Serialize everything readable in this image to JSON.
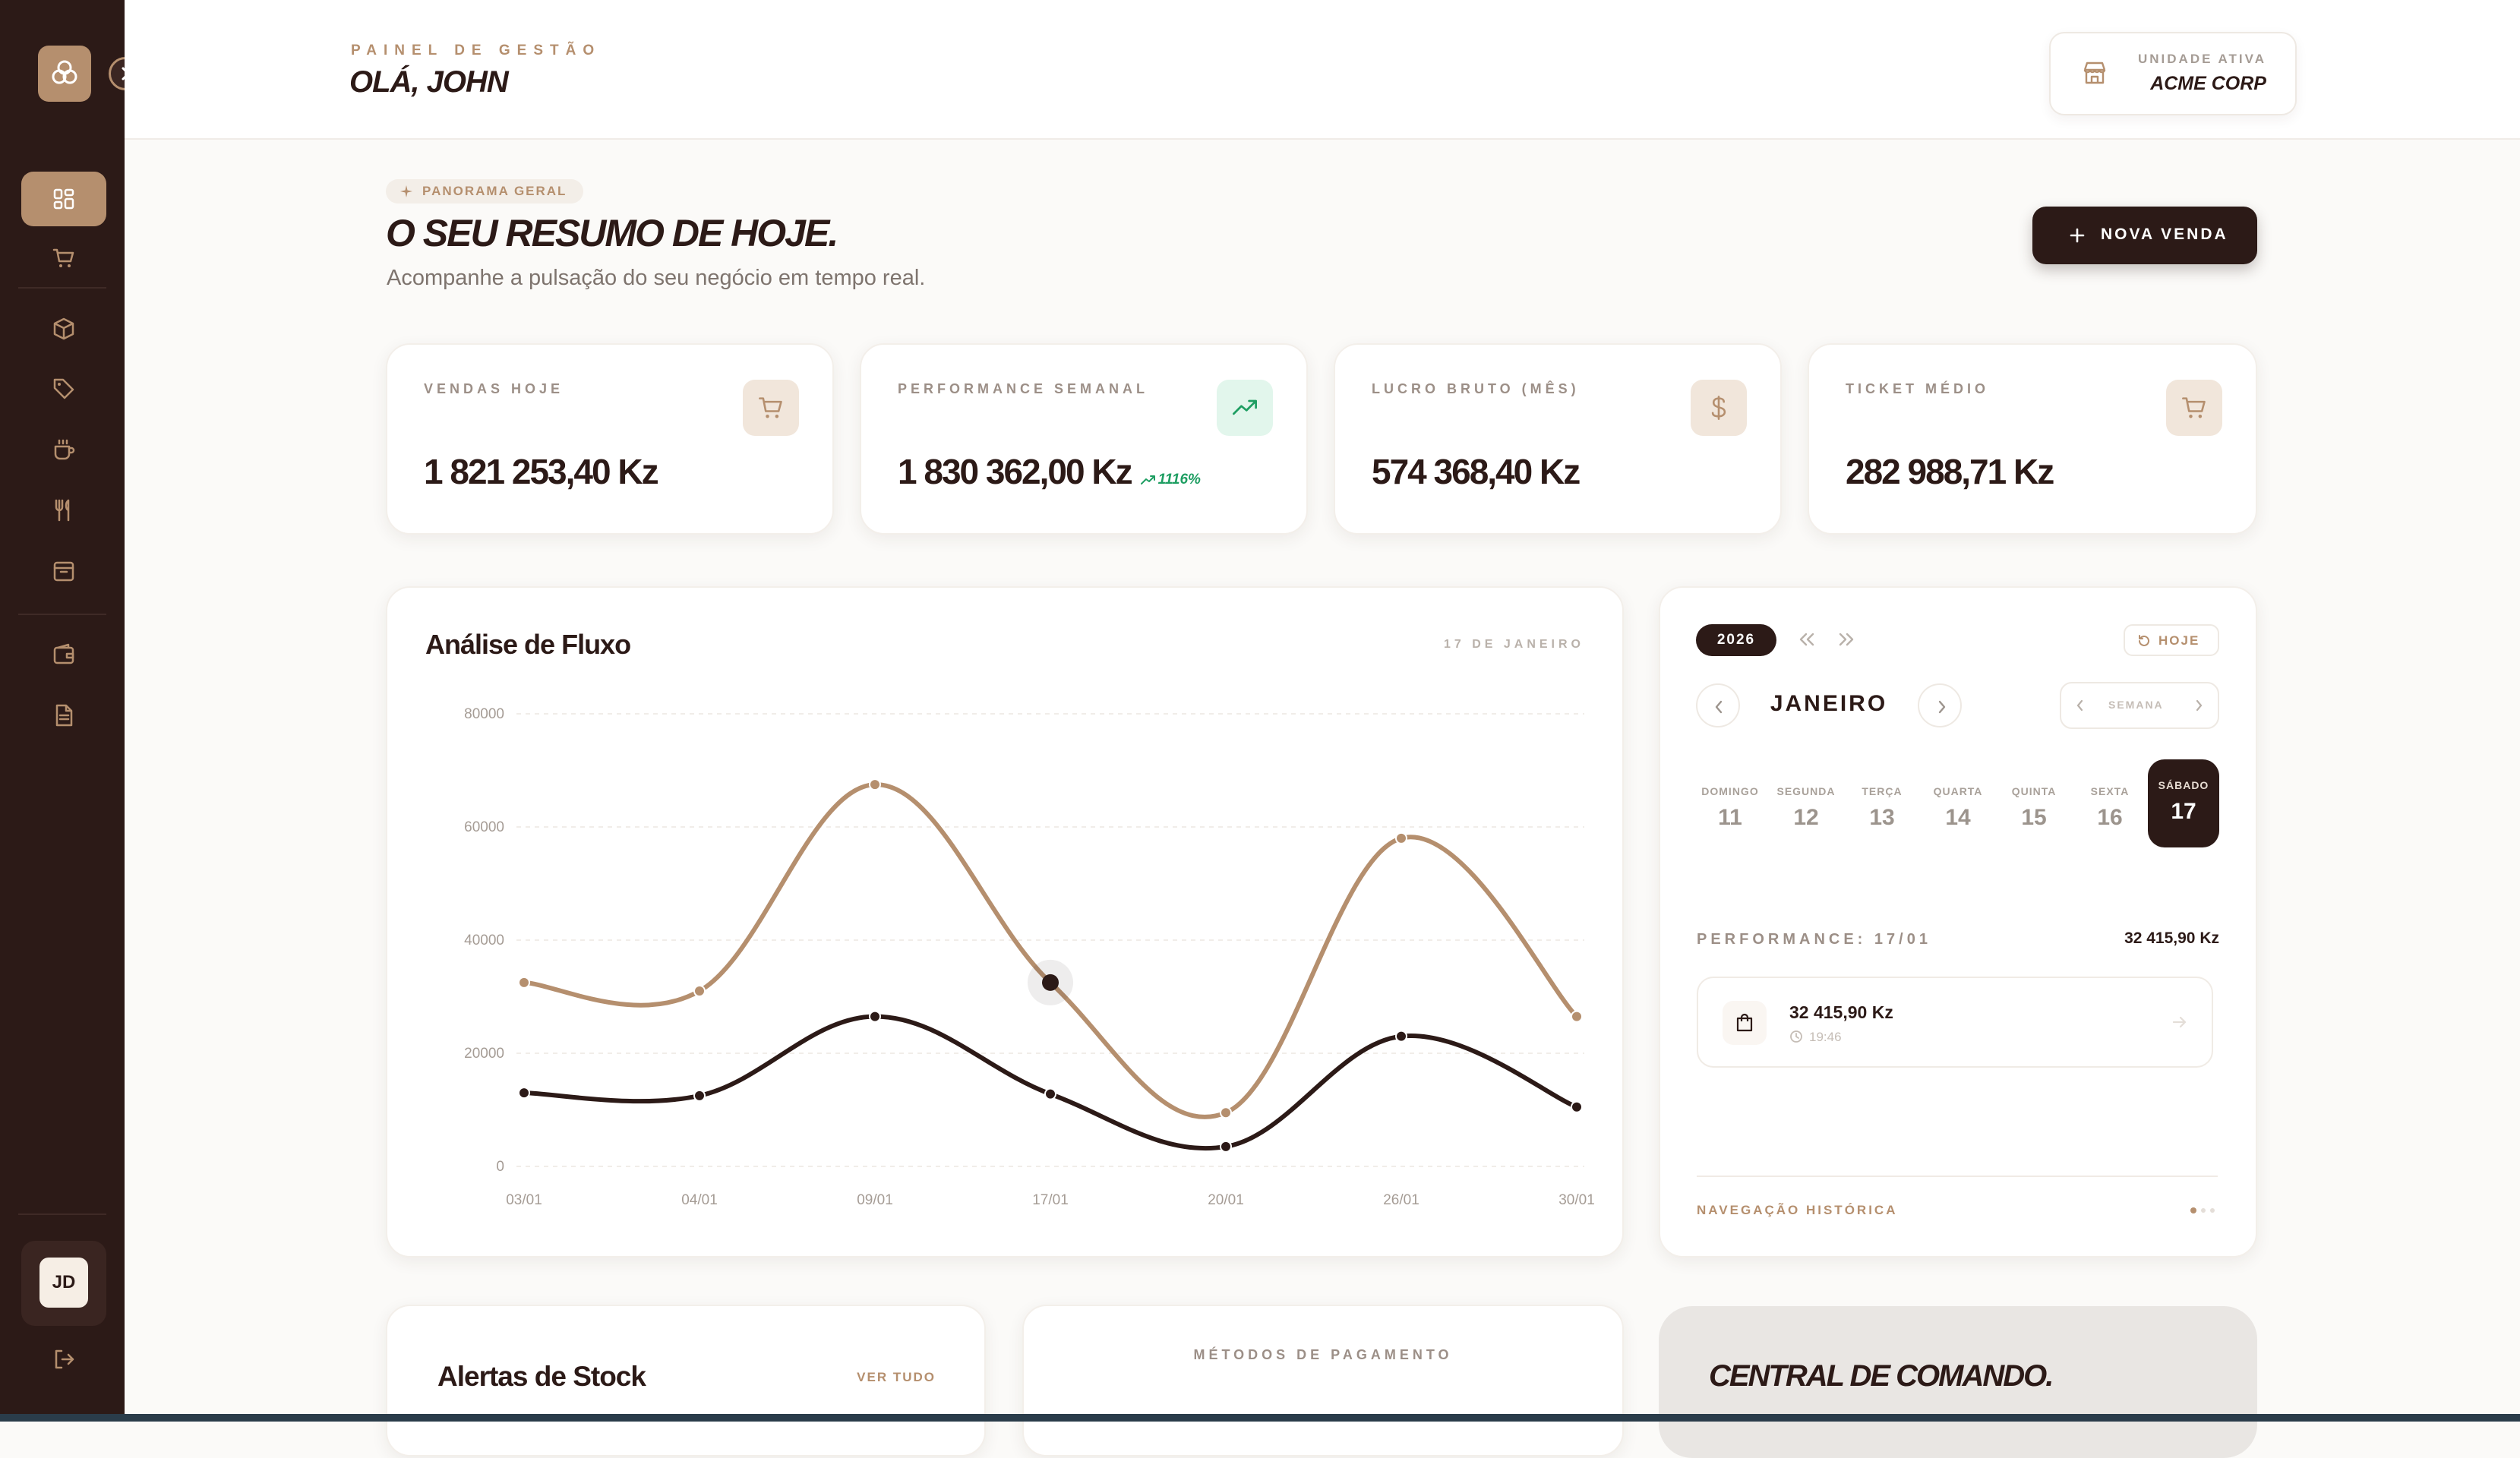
{
  "header": {
    "eyebrow": "PAINEL DE GESTÃO",
    "greeting": "OLÁ, JOHN",
    "unit_label": "UNIDADE ATIVA",
    "unit_name": "ACME CORP"
  },
  "sidebar": {
    "avatar_initials": "JD",
    "items": [
      {
        "icon": "dashboard-icon"
      },
      {
        "icon": "cart-icon"
      },
      {
        "icon": "box-icon"
      },
      {
        "icon": "tag-icon"
      },
      {
        "icon": "coffee-cup-icon"
      },
      {
        "icon": "utensils-icon"
      },
      {
        "icon": "archive-icon"
      },
      {
        "icon": "wallet-icon"
      },
      {
        "icon": "document-icon"
      }
    ]
  },
  "overview": {
    "badge": "PANORAMA GERAL",
    "title": "O SEU RESUMO DE HOJE.",
    "subtitle": "Acompanhe a pulsação do seu negócio em tempo real.",
    "new_sale_label": "NOVA VENDA"
  },
  "kpis": [
    {
      "label": "VENDAS HOJE",
      "value": "1 821 253,40 Kz",
      "icon": "cart-icon"
    },
    {
      "label": "PERFORMANCE SEMANAL",
      "value": "1 830 362,00 Kz",
      "trend": "1116%",
      "icon": "trending-up-icon"
    },
    {
      "label": "LUCRO BRUTO (MÊS)",
      "value": "574 368,40 Kz",
      "icon": "dollar-icon"
    },
    {
      "label": "TICKET MÉDIO",
      "value": "282 988,71 Kz",
      "icon": "cart-icon"
    }
  ],
  "flow": {
    "title": "Análise de Fluxo",
    "date": "17 DE JANEIRO"
  },
  "chart_data": {
    "type": "line",
    "title": "Análise de Fluxo",
    "xlabel": "",
    "ylabel": "",
    "categories": [
      "03/01",
      "04/01",
      "09/01",
      "17/01",
      "20/01",
      "26/01",
      "30/01"
    ],
    "ylim": [
      0,
      80000
    ],
    "yticks": [
      0,
      20000,
      40000,
      60000,
      80000
    ],
    "grid": true,
    "series": [
      {
        "color": "#b58f6e",
        "values": [
          32500,
          31000,
          67500,
          32500,
          9500,
          58000,
          26500
        ]
      },
      {
        "color": "#2c1a17",
        "values": [
          13000,
          12500,
          26500,
          12800,
          3500,
          23000,
          10500
        ]
      }
    ],
    "highlight": {
      "series": 0,
      "index": 3
    }
  },
  "calendar": {
    "year": "2026",
    "today_label": "HOJE",
    "month": "JANEIRO",
    "week_label": "SEMANA",
    "days": [
      {
        "name": "DOMINGO",
        "num": "11"
      },
      {
        "name": "SEGUNDA",
        "num": "12"
      },
      {
        "name": "TERÇA",
        "num": "13"
      },
      {
        "name": "QUARTA",
        "num": "14"
      },
      {
        "name": "QUINTA",
        "num": "15"
      },
      {
        "name": "SEXTA",
        "num": "16"
      },
      {
        "name": "SÁBADO",
        "num": "17"
      }
    ],
    "selected_index": 6,
    "performance_label": "PERFORMANCE: 17/01",
    "performance_total": "32 415,90 Kz",
    "entry_amount": "32 415,90 Kz",
    "entry_time": "19:46",
    "history_label": "NAVEGAÇÃO HISTÓRICA"
  },
  "bottom": {
    "alerts_title": "Alertas de Stock",
    "alerts_link": "VER TUDO",
    "payments_label": "MÉTODOS DE PAGAMENTO",
    "command_title": "CENTRAL DE COMANDO."
  },
  "colors": {
    "sidebar": "#2c1a17",
    "accent": "#b58f6e",
    "dark": "#2c1a17",
    "positive": "#1e9e62"
  }
}
